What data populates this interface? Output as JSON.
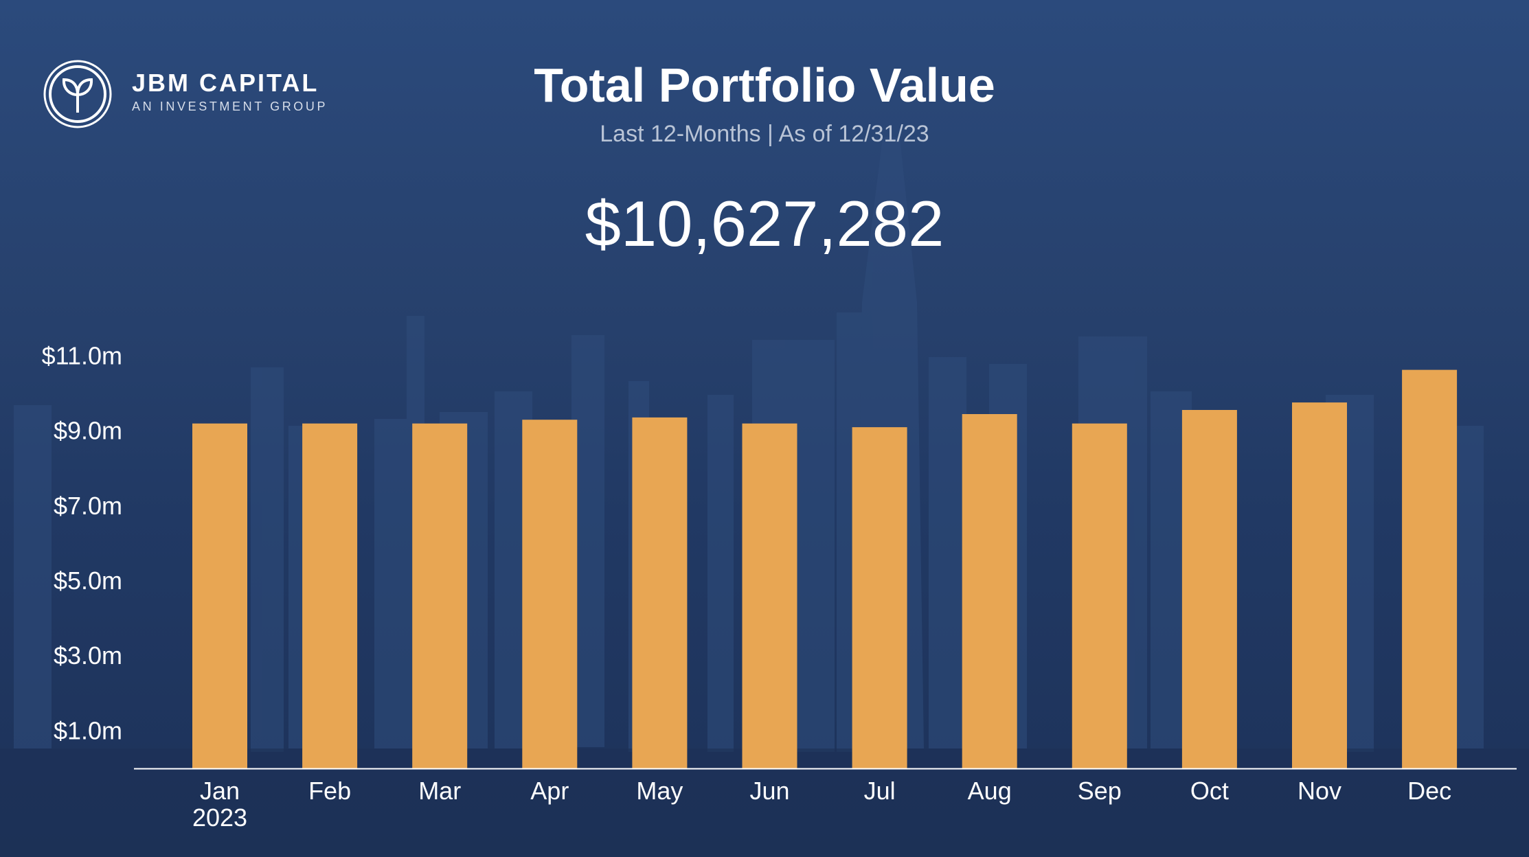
{
  "header": {
    "brand_name": "JBM CAPITAL",
    "brand_tagline": "AN INVESTMENT GROUP",
    "logo_icon": "sprout-circle-icon",
    "title": "Total Portfolio Value",
    "subtitle": "Last 12-Months | As of 12/31/23",
    "total_value": "$10,627,282"
  },
  "colors": {
    "bar": "#e8a653",
    "background": "#22385f",
    "axis": "#ffffff"
  },
  "chart_data": {
    "type": "bar",
    "title": "Total Portfolio Value",
    "categories": [
      "Jan",
      "Feb",
      "Mar",
      "Apr",
      "May",
      "Jun",
      "Jul",
      "Aug",
      "Sep",
      "Oct",
      "Nov",
      "Dec"
    ],
    "category_sublabels": [
      "2023",
      "",
      "",
      "",
      "",
      "",
      "",
      "",
      "",
      "",
      "",
      ""
    ],
    "values": [
      9.2,
      9.2,
      9.2,
      9.3,
      9.36,
      9.2,
      9.1,
      9.45,
      9.2,
      9.56,
      9.76,
      10.63
    ],
    "units": "$ millions",
    "y_ticks": [
      1,
      3,
      5,
      7,
      9,
      11
    ],
    "y_tick_labels": [
      "$1.0m",
      "$3.0m",
      "$5.0m",
      "$7.0m",
      "$9.0m",
      "$11.0m"
    ],
    "ylim": [
      0,
      11
    ],
    "xlabel": "",
    "ylabel": "",
    "grid": false,
    "legend": "none"
  }
}
